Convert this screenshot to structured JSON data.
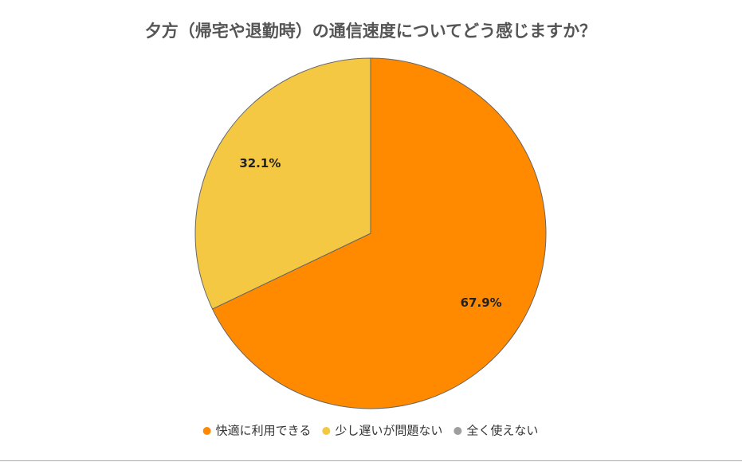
{
  "chart_data": {
    "type": "pie",
    "title": "夕方（帰宅や退勤時）の通信速度についてどう感じますか？",
    "categories": [
      "快適に利用できる",
      "少し遅いが問題ない",
      "全く使えない"
    ],
    "values": [
      67.9,
      32.1,
      0
    ],
    "value_labels": [
      "67.9%",
      "32.1%",
      null
    ],
    "colors": [
      "#ff8a00",
      "#f4c842",
      "#9e9e9e"
    ],
    "legend": "bottom"
  }
}
